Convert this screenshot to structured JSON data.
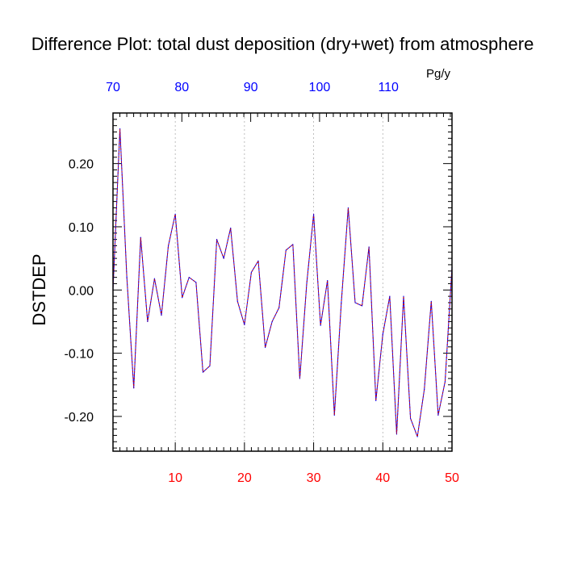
{
  "chart_data": {
    "type": "line",
    "title": "Difference Plot: total dust deposition (dry+wet) from atmosphere",
    "ylabel": "DSTDEP",
    "top_axis_units": "Pg/y",
    "xlim": [
      1,
      50
    ],
    "ylim": [
      -0.255,
      0.28
    ],
    "x_ticks": [
      "10",
      "20",
      "30",
      "40",
      "50"
    ],
    "y_ticks": [
      "0.20",
      "0.10",
      "0.00",
      "-0.10",
      "-0.20"
    ],
    "top_ticks": [
      "70",
      "80",
      "90",
      "100",
      "110"
    ],
    "grid": "vertical dashed",
    "colors": {
      "line_primary": "#0000ff",
      "line_secondary": "#cc0000",
      "bottom_tick_labels": "#ff0000",
      "top_tick_labels": "#0000ff",
      "axis": "#000000",
      "grid": "#b0b0b0"
    },
    "series": [
      {
        "x": [
          1,
          2,
          3,
          4,
          5,
          6,
          7,
          8,
          9,
          10,
          11,
          12,
          13,
          14,
          15,
          16,
          17,
          18,
          19,
          20,
          21,
          22,
          23,
          24,
          25,
          26,
          27,
          28,
          29,
          30,
          31,
          32,
          33,
          34,
          35,
          36,
          37,
          38,
          39,
          40,
          41,
          42,
          43,
          44,
          45,
          46,
          47,
          48,
          49,
          50
        ],
        "values": [
          0.0,
          0.255,
          0.02,
          -0.155,
          0.083,
          -0.05,
          0.018,
          -0.04,
          0.07,
          0.12,
          -0.012,
          0.02,
          0.012,
          -0.13,
          -0.12,
          0.08,
          0.05,
          0.098,
          -0.018,
          -0.055,
          0.028,
          0.046,
          -0.091,
          -0.05,
          -0.028,
          0.063,
          0.072,
          -0.14,
          0.01,
          0.12,
          -0.056,
          0.015,
          -0.198,
          -0.02,
          0.13,
          -0.02,
          -0.025,
          0.068,
          -0.175,
          -0.07,
          -0.01,
          -0.228,
          -0.01,
          -0.203,
          -0.232,
          -0.157,
          -0.018,
          -0.198,
          -0.145,
          0.036
        ]
      }
    ]
  }
}
